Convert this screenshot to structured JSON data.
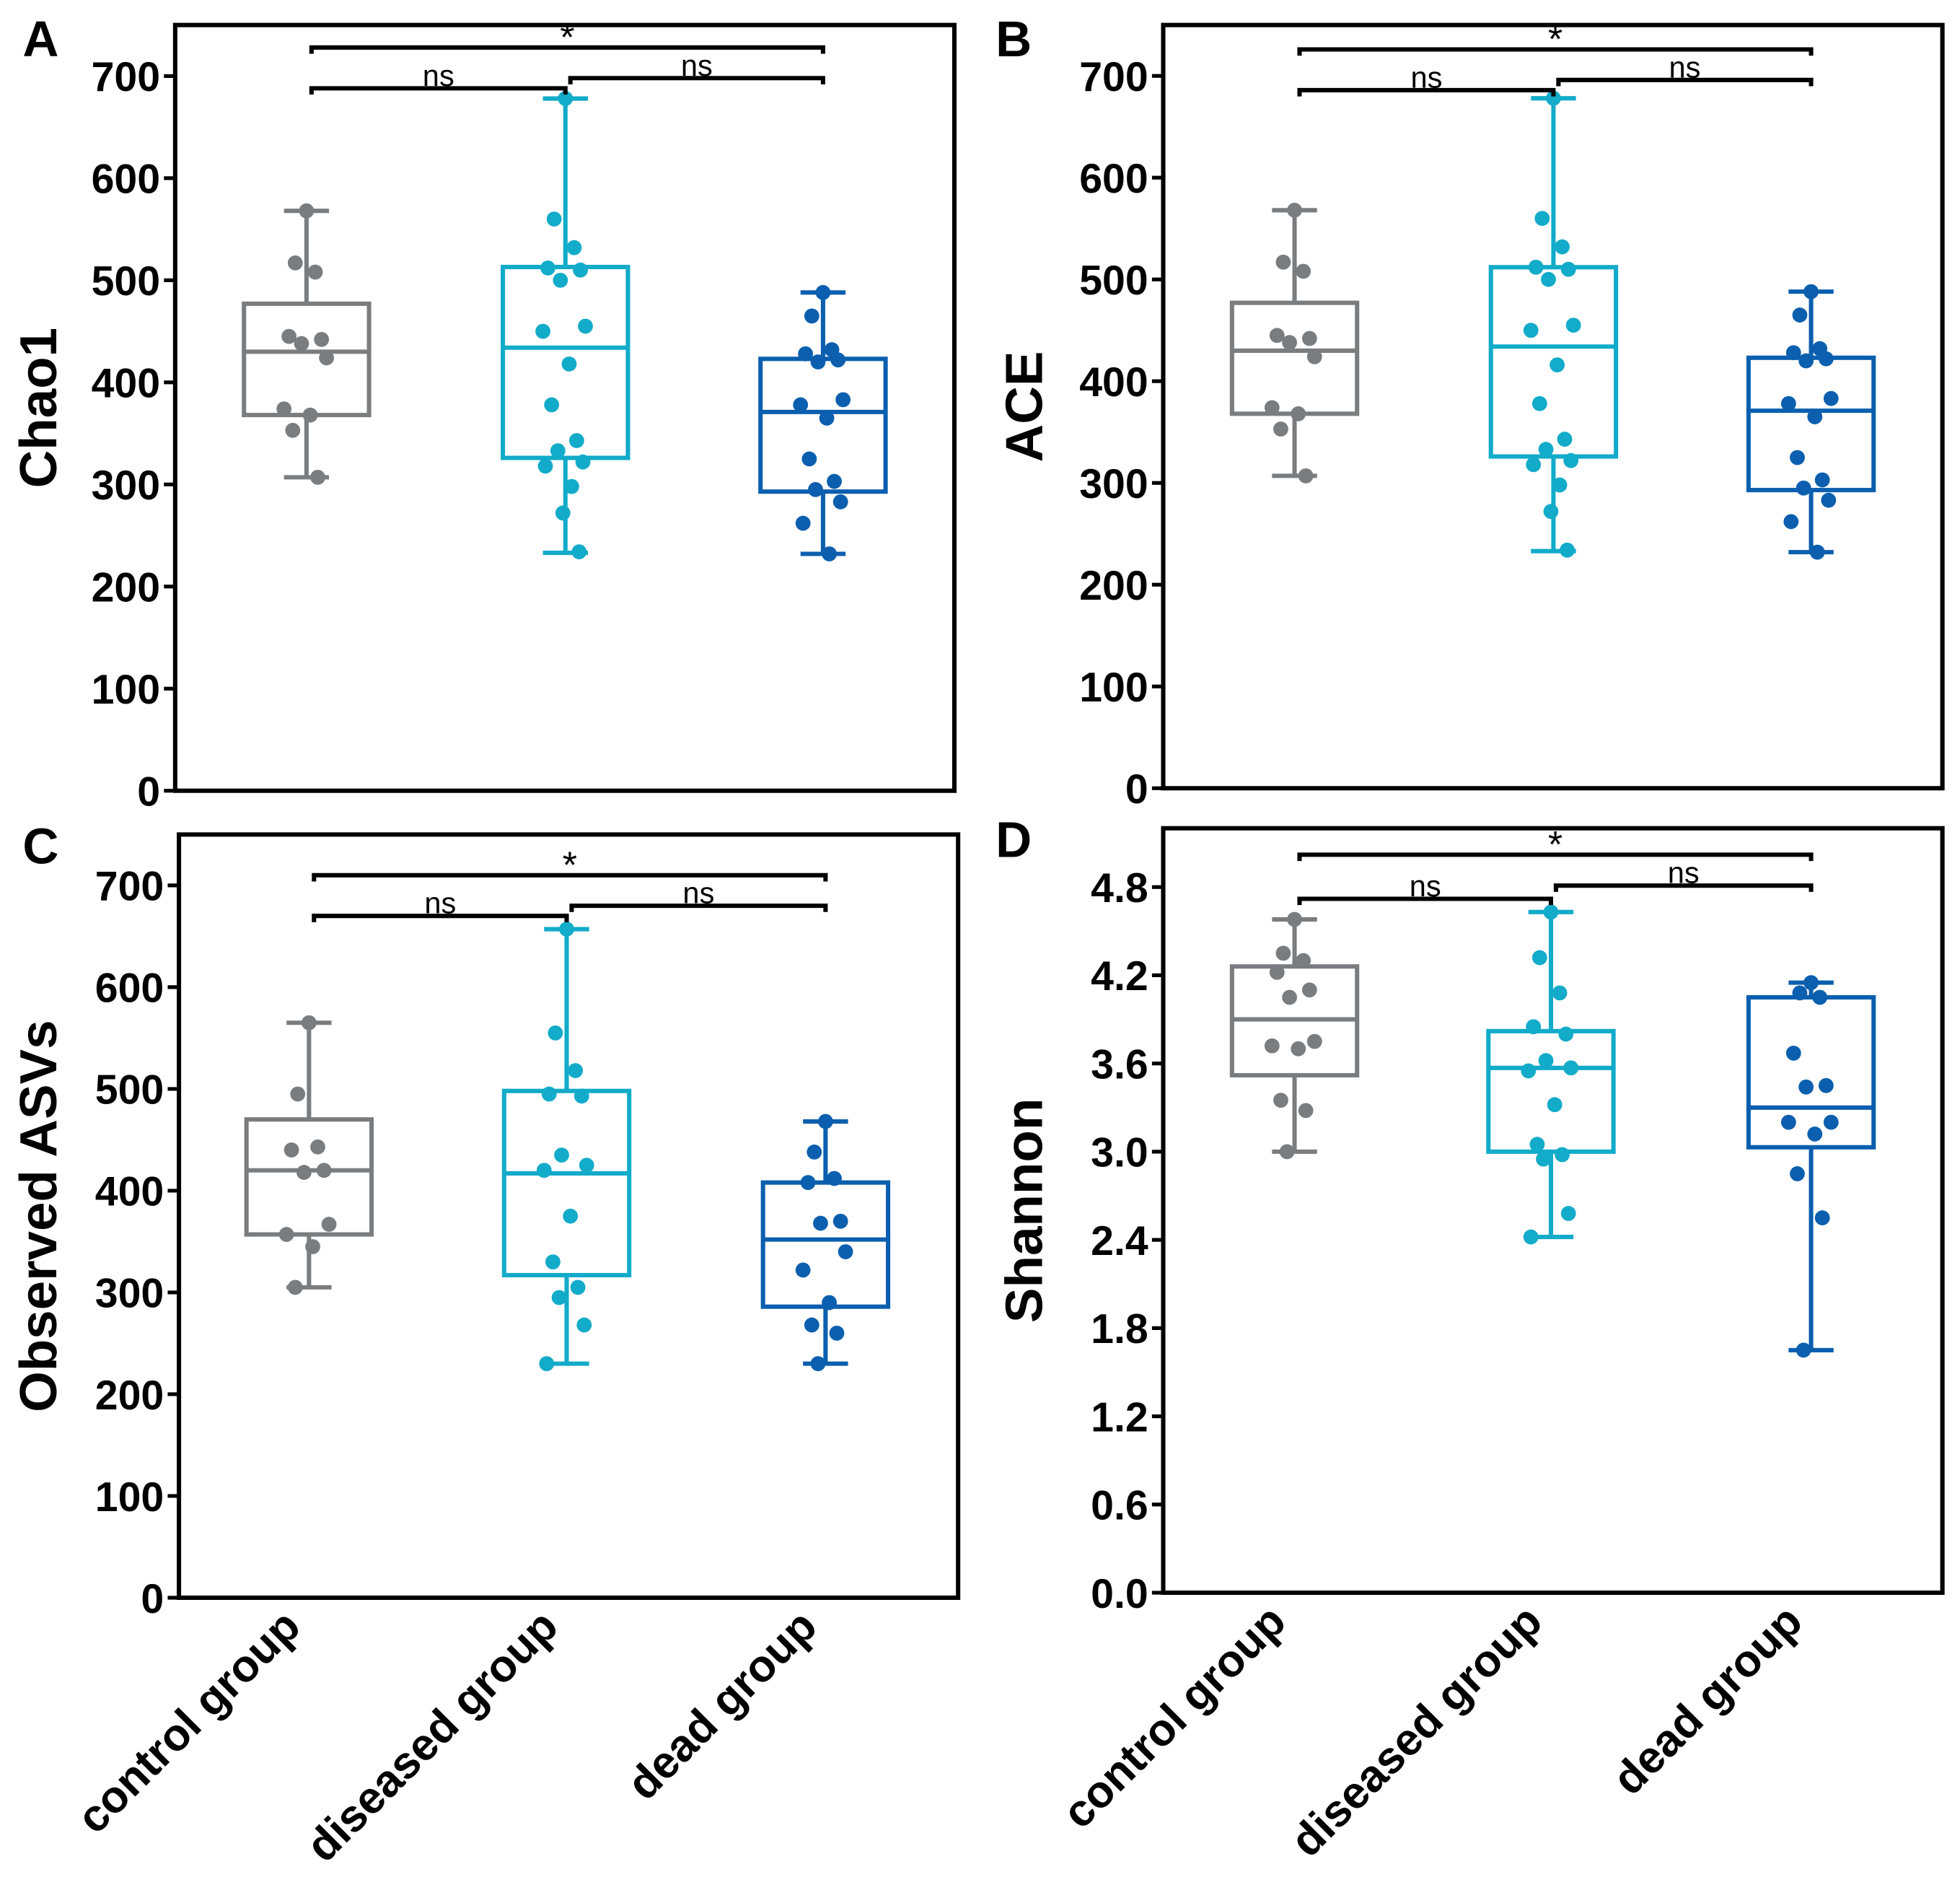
{
  "colors": {
    "control group": "#7a7d80",
    "diseased group": "#12abc9",
    "dead group": "#0b5fae"
  },
  "chart_data": [
    {
      "type": "box",
      "panel": "A",
      "ylabel": "Chao1",
      "ylim": [
        0,
        750
      ],
      "yticks": [
        "0",
        "100",
        "200",
        "300",
        "400",
        "500",
        "600",
        "700"
      ],
      "ytick_values": [
        0,
        100,
        200,
        300,
        400,
        500,
        600,
        700
      ],
      "categories": [
        "control group",
        "diseased group",
        "dead group"
      ],
      "series": [
        {
          "name": "control group",
          "whisker_low": 307,
          "q1": 368,
          "median": 430,
          "q3": 477,
          "whisker_high": 568,
          "points": [
            568,
            517,
            508,
            445,
            442,
            438,
            424,
            374,
            368,
            353,
            307
          ]
        },
        {
          "name": "diseased group",
          "whisker_low": 233,
          "q1": 326,
          "median": 434,
          "q3": 513,
          "whisker_high": 678,
          "points": [
            678,
            560,
            532,
            512,
            510,
            500,
            455,
            450,
            418,
            378,
            343,
            333,
            322,
            318,
            298,
            272,
            234
          ]
        },
        {
          "name": "dead group",
          "whisker_low": 232,
          "q1": 293,
          "median": 371,
          "q3": 423,
          "whisker_high": 488,
          "points": [
            488,
            465,
            432,
            428,
            422,
            420,
            383,
            378,
            365,
            325,
            303,
            295,
            283,
            262,
            232
          ]
        }
      ],
      "comparisons": [
        {
          "groups": [
            0,
            1
          ],
          "label": "ns",
          "level": 688
        },
        {
          "groups": [
            1,
            2
          ],
          "label": "ns",
          "level": 698
        },
        {
          "groups": [
            0,
            2
          ],
          "label": "*",
          "level": 728
        }
      ]
    },
    {
      "type": "box",
      "panel": "B",
      "ylabel": "ACE",
      "ylim": [
        0,
        750
      ],
      "yticks": [
        "0",
        "100",
        "200",
        "300",
        "400",
        "500",
        "600",
        "700"
      ],
      "ytick_values": [
        0,
        100,
        200,
        300,
        400,
        500,
        600,
        700
      ],
      "categories": [
        "control group",
        "diseased group",
        "dead group"
      ],
      "series": [
        {
          "name": "control group",
          "whisker_low": 307,
          "q1": 368,
          "median": 430,
          "q3": 477,
          "whisker_high": 568,
          "points": [
            568,
            517,
            508,
            445,
            442,
            438,
            424,
            374,
            368,
            353,
            307
          ]
        },
        {
          "name": "diseased group",
          "whisker_low": 233,
          "q1": 326,
          "median": 434,
          "q3": 512,
          "whisker_high": 678,
          "points": [
            678,
            560,
            532,
            512,
            510,
            500,
            455,
            450,
            416,
            378,
            343,
            333,
            322,
            318,
            298,
            272,
            234
          ]
        },
        {
          "name": "dead group",
          "whisker_low": 232,
          "q1": 293,
          "median": 371,
          "q3": 423,
          "whisker_high": 488,
          "points": [
            488,
            465,
            432,
            428,
            422,
            420,
            383,
            378,
            365,
            325,
            303,
            295,
            283,
            262,
            232
          ]
        }
      ],
      "comparisons": [
        {
          "groups": [
            0,
            1
          ],
          "label": "ns",
          "level": 686
        },
        {
          "groups": [
            1,
            2
          ],
          "label": "ns",
          "level": 696
        },
        {
          "groups": [
            0,
            2
          ],
          "label": "*",
          "level": 726
        }
      ]
    },
    {
      "type": "box",
      "panel": "C",
      "ylabel": "Observed ASVs",
      "ylim": [
        0,
        750
      ],
      "yticks": [
        "0",
        "100",
        "200",
        "300",
        "400",
        "500",
        "600",
        "700"
      ],
      "ytick_values": [
        0,
        100,
        200,
        300,
        400,
        500,
        600,
        700
      ],
      "categories": [
        "control group",
        "diseased group",
        "dead group"
      ],
      "series": [
        {
          "name": "control group",
          "whisker_low": 305,
          "q1": 357,
          "median": 420,
          "q3": 470,
          "whisker_high": 565,
          "points": [
            565,
            495,
            443,
            440,
            420,
            418,
            367,
            357,
            345,
            305
          ]
        },
        {
          "name": "diseased group",
          "whisker_low": 230,
          "q1": 317,
          "median": 417,
          "q3": 498,
          "whisker_high": 657,
          "points": [
            657,
            555,
            518,
            495,
            493,
            435,
            425,
            420,
            375,
            330,
            305,
            295,
            268,
            230
          ]
        },
        {
          "name": "dead group",
          "whisker_low": 230,
          "q1": 286,
          "median": 352,
          "q3": 408,
          "whisker_high": 468,
          "points": [
            468,
            438,
            412,
            408,
            370,
            368,
            340,
            322,
            290,
            268,
            260,
            230
          ]
        }
      ],
      "comparisons": [
        {
          "groups": [
            0,
            1
          ],
          "label": "ns",
          "level": 670
        },
        {
          "groups": [
            1,
            2
          ],
          "label": "ns",
          "level": 680
        },
        {
          "groups": [
            0,
            2
          ],
          "label": "*",
          "level": 710
        }
      ]
    },
    {
      "type": "box",
      "panel": "D",
      "ylabel": "Shannon",
      "ylim": [
        0,
        5.2
      ],
      "yticks": [
        "0.0",
        "0.6",
        "1.2",
        "1.8",
        "2.4",
        "3.0",
        "3.6",
        "4.2",
        "4.8"
      ],
      "ytick_values": [
        0,
        0.6,
        1.2,
        1.8,
        2.4,
        3.0,
        3.6,
        4.2,
        4.8
      ],
      "categories": [
        "control group",
        "diseased group",
        "dead group"
      ],
      "series": [
        {
          "name": "control group",
          "whisker_low": 3.0,
          "q1": 3.52,
          "median": 3.9,
          "q3": 4.26,
          "whisker_high": 4.58,
          "points": [
            4.58,
            4.35,
            4.3,
            4.22,
            4.1,
            4.05,
            3.75,
            3.72,
            3.7,
            3.35,
            3.28,
            3.0
          ]
        },
        {
          "name": "diseased group",
          "whisker_low": 2.42,
          "q1": 3.0,
          "median": 3.57,
          "q3": 3.82,
          "whisker_high": 4.63,
          "points": [
            4.63,
            4.32,
            4.08,
            3.85,
            3.8,
            3.62,
            3.57,
            3.55,
            3.32,
            3.05,
            2.98,
            2.95,
            2.58,
            2.42
          ]
        },
        {
          "name": "dead group",
          "whisker_low": 1.65,
          "q1": 3.03,
          "median": 3.3,
          "q3": 4.05,
          "whisker_high": 4.15,
          "points": [
            4.15,
            4.08,
            4.05,
            3.67,
            3.45,
            3.44,
            3.2,
            3.2,
            3.12,
            2.85,
            2.55,
            1.65
          ]
        }
      ],
      "comparisons": [
        {
          "groups": [
            0,
            1
          ],
          "label": "ns",
          "level": 4.72
        },
        {
          "groups": [
            1,
            2
          ],
          "label": "ns",
          "level": 4.81
        },
        {
          "groups": [
            0,
            2
          ],
          "label": "*",
          "level": 5.02
        }
      ]
    }
  ]
}
